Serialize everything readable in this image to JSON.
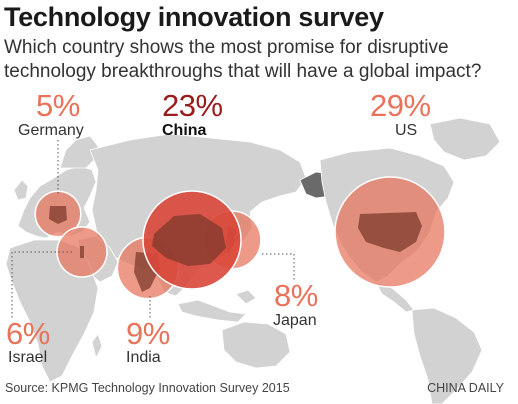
{
  "title": "Technology innovation survey",
  "subtitle": "Which country shows the most promise for disruptive technology breakthroughs that will have a global impact?",
  "source": "Source: KPMG Technology Innovation Survey 2015",
  "brand": "CHINA DAILY",
  "colors": {
    "bubble": "#e8735a",
    "bubble_china": "#d9473a",
    "land": "#d2d2d2",
    "highlight": "#7e3a2c",
    "pct_light": "#e8735a",
    "pct_china": "#9c1b1b"
  },
  "chart_data": {
    "type": "bubble-map",
    "title": "Technology innovation survey",
    "subtitle": "Which country shows the most promise for disruptive technology breakthroughs that will have a global impact?",
    "unit": "%",
    "points": [
      {
        "country": "US",
        "value": 29,
        "label": "29%"
      },
      {
        "country": "China",
        "value": 23,
        "label": "23%"
      },
      {
        "country": "Japan",
        "value": 8,
        "label": "8%"
      },
      {
        "country": "India",
        "value": 9,
        "label": "9%"
      },
      {
        "country": "Israel",
        "value": 6,
        "label": "6%"
      },
      {
        "country": "Germany",
        "value": 5,
        "label": "5%"
      }
    ]
  }
}
